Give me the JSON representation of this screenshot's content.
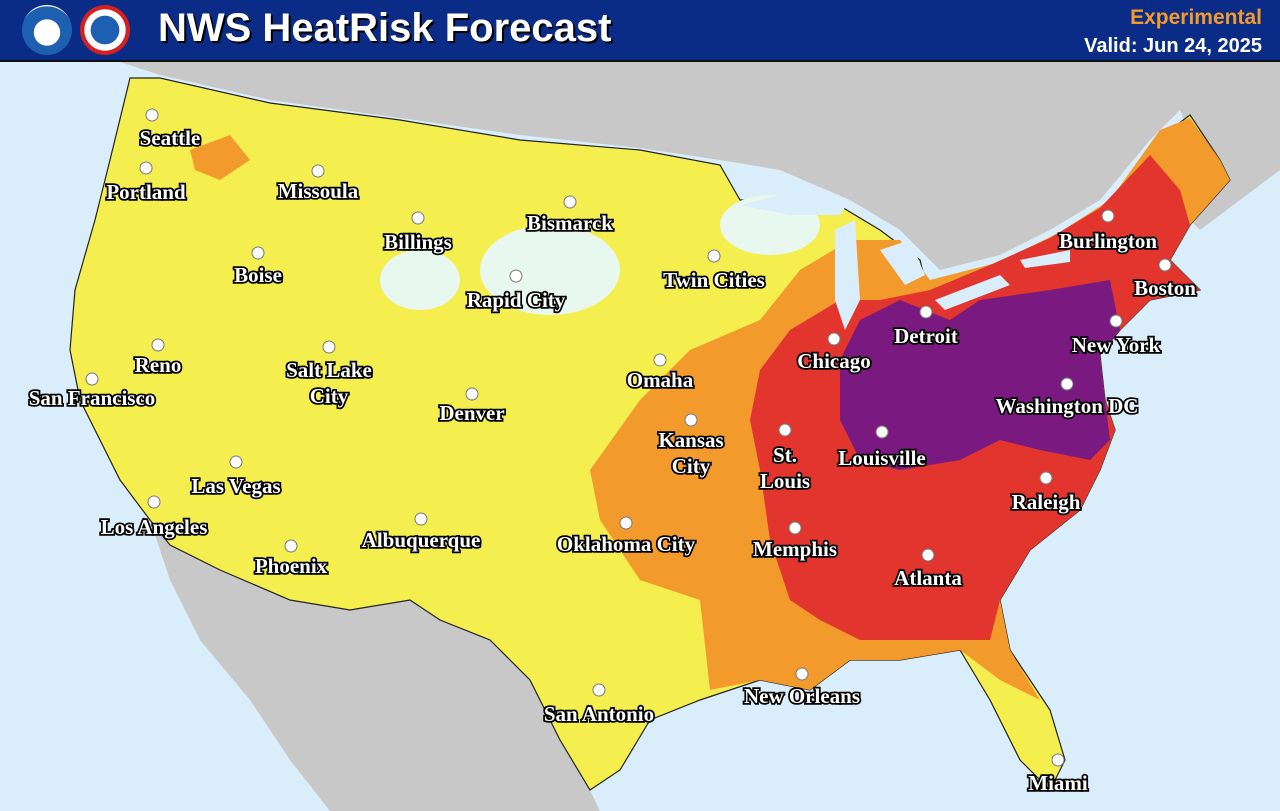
{
  "header": {
    "title": "NWS HeatRisk Forecast",
    "status": "Experimental",
    "valid": "Valid: Jun 24, 2025",
    "logos": [
      "NOAA",
      "National Weather Service"
    ]
  },
  "colors": {
    "header_bg": "#0a2b86",
    "water": "#d9eefa",
    "neighbor_land": "#c8c8c8",
    "risk_none": "#e9f8ee",
    "risk_minor": "#f5ee4f",
    "risk_moderate": "#f39a2d",
    "risk_major": "#e1352e",
    "risk_extreme": "#7a1a80"
  },
  "cities": [
    {
      "name": "Seattle"
    },
    {
      "name": "Portland"
    },
    {
      "name": "Missoula"
    },
    {
      "name": "Boise"
    },
    {
      "name": "Billings"
    },
    {
      "name": "Bismarck"
    },
    {
      "name": "Rapid City"
    },
    {
      "name": "Twin Cities"
    },
    {
      "name": "Reno"
    },
    {
      "name": "San Francisco"
    },
    {
      "name": "Salt Lake",
      "name2": "City"
    },
    {
      "name": "Denver"
    },
    {
      "name": "Omaha"
    },
    {
      "name": "Kansas",
      "name2": "City"
    },
    {
      "name": "Chicago"
    },
    {
      "name": "Detroit"
    },
    {
      "name": "Burlington"
    },
    {
      "name": "Boston"
    },
    {
      "name": "New York"
    },
    {
      "name": "Washington DC"
    },
    {
      "name": "St.",
      "name2": "Louis"
    },
    {
      "name": "Louisville"
    },
    {
      "name": "Raleigh"
    },
    {
      "name": "Las Vegas"
    },
    {
      "name": "Los Angeles"
    },
    {
      "name": "Phoenix"
    },
    {
      "name": "Albuquerque"
    },
    {
      "name": "Oklahoma City"
    },
    {
      "name": "Memphis"
    },
    {
      "name": "Atlanta"
    },
    {
      "name": "New Orleans"
    },
    {
      "name": "San Antonio"
    },
    {
      "name": "Miami"
    }
  ]
}
